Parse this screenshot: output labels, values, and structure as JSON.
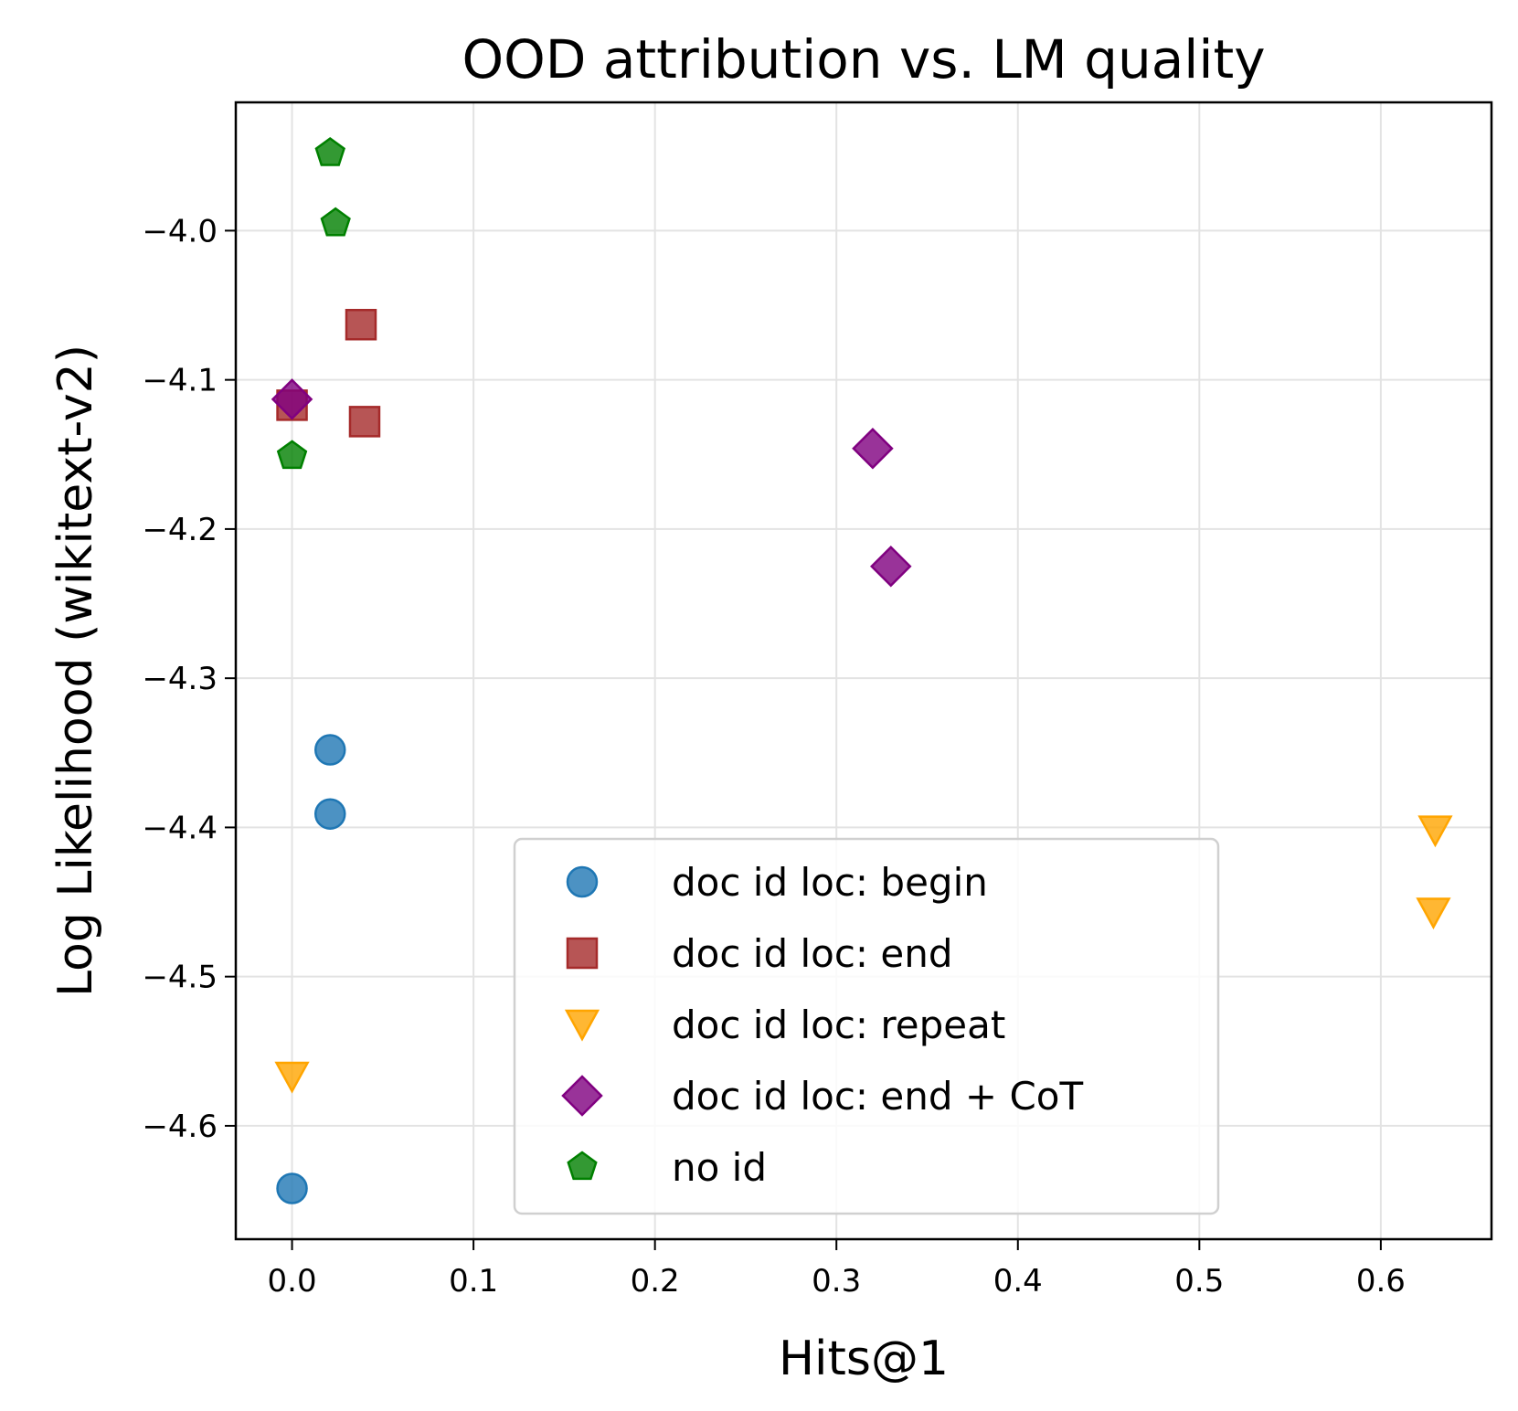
{
  "chart_data": {
    "type": "scatter",
    "title": "OOD attribution vs. LM quality",
    "xlabel": "Hits@1",
    "ylabel": "Log Likelihood (wikitext-v2)",
    "xlim": [
      -0.031,
      0.661
    ],
    "ylim": [
      -4.676,
      -3.914
    ],
    "grid": true,
    "legend_position": "bottom-center",
    "x_ticks": [
      0.0,
      0.1,
      0.2,
      0.3,
      0.4,
      0.5,
      0.6
    ],
    "x_tick_labels": [
      "0.0",
      "0.1",
      "0.2",
      "0.3",
      "0.4",
      "0.5",
      "0.6"
    ],
    "y_ticks": [
      -4.0,
      -4.1,
      -4.2,
      -4.3,
      -4.4,
      -4.5,
      -4.6
    ],
    "y_tick_labels": [
      "−4.0",
      "−4.1",
      "−4.2",
      "−4.3",
      "−4.4",
      "−4.5",
      "−4.6"
    ],
    "series": [
      {
        "name": "doc id loc: begin",
        "marker": "circle",
        "color": "#1f77b4",
        "points": [
          [
            0.021,
            -4.348
          ],
          [
            0.021,
            -4.391
          ],
          [
            0.0,
            -4.642
          ]
        ]
      },
      {
        "name": "doc id loc: end",
        "marker": "square",
        "color": "#a52a2a",
        "points": [
          [
            0.038,
            -4.063
          ],
          [
            0.04,
            -4.128
          ],
          [
            0.0,
            -4.117
          ]
        ]
      },
      {
        "name": "doc id loc: repeat",
        "marker": "triangle-down",
        "color": "#ffa500",
        "points": [
          [
            0.63,
            -4.402
          ],
          [
            0.629,
            -4.457
          ],
          [
            0.0,
            -4.567
          ]
        ]
      },
      {
        "name": "doc id loc: end + CoT",
        "marker": "diamond",
        "color": "#800080",
        "points": [
          [
            0.32,
            -4.146
          ],
          [
            0.33,
            -4.225
          ],
          [
            0.0,
            -4.113
          ]
        ]
      },
      {
        "name": "no id",
        "marker": "pentagon",
        "color": "#008000",
        "points": [
          [
            0.021,
            -3.948
          ],
          [
            0.024,
            -3.995
          ],
          [
            0.0,
            -4.151
          ]
        ]
      }
    ]
  }
}
